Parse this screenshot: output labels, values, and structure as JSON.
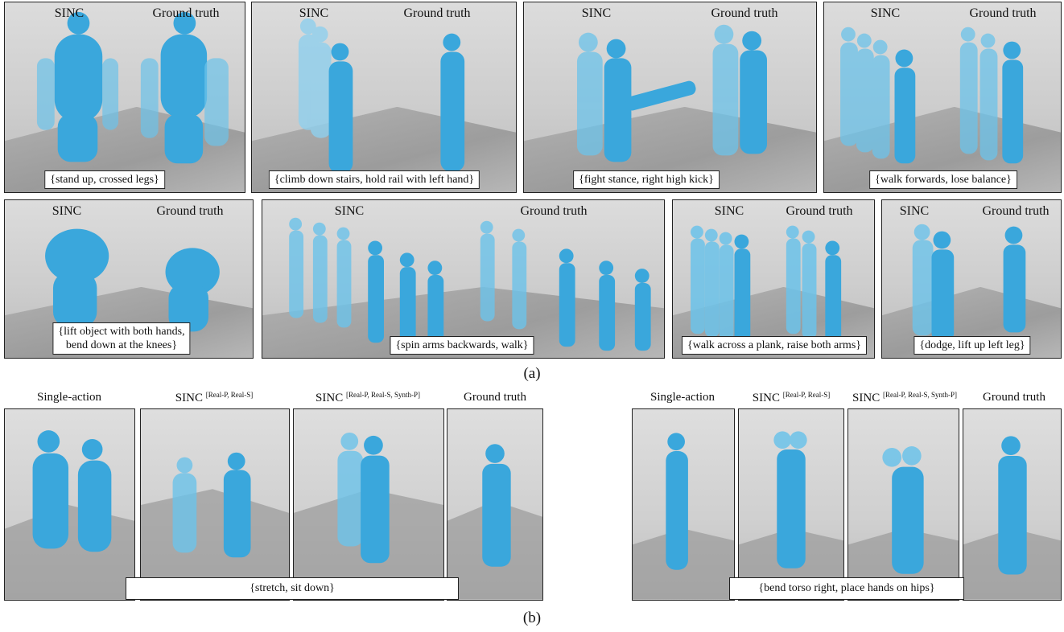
{
  "panels_a": [
    {
      "left": "SINC",
      "right": "Ground truth",
      "caption": "{stand up, crossed legs}"
    },
    {
      "left": "SINC",
      "right": "Ground truth",
      "caption": "{climb down stairs, hold rail with left hand}"
    },
    {
      "left": "SINC",
      "right": "Ground truth",
      "caption": "{fight stance, right high kick}"
    },
    {
      "left": "SINC",
      "right": "Ground truth",
      "caption": "{walk forwards, lose balance}"
    },
    {
      "left": "SINC",
      "right": "Ground truth",
      "caption1": "{lift object with both hands,",
      "caption2": "bend down at the knees}"
    },
    {
      "left": "SINC",
      "right": "Ground truth",
      "caption": "{spin arms backwards, walk}"
    },
    {
      "left": "SINC",
      "right": "Ground truth",
      "caption": "{walk across a plank, raise both arms}"
    },
    {
      "left": "SINC",
      "right": "Ground truth",
      "caption": "{dodge, lift up left leg}"
    }
  ],
  "label_a": "(a)",
  "group_b": [
    {
      "headers": {
        "single": "Single-action",
        "sinc1": "SINC",
        "sinc1_sup": "[Real-P, Real-S]",
        "sinc2": "SINC",
        "sinc2_sup": "[Real-P, Real-S, Synth-P]",
        "gt": "Ground truth"
      },
      "caption": "{stretch, sit down}"
    },
    {
      "headers": {
        "single": "Single-action",
        "sinc1": "SINC",
        "sinc1_sup": "[Real-P, Real-S]",
        "sinc2": "SINC",
        "sinc2_sup": "[Real-P, Real-S, Synth-P]",
        "gt": "Ground truth"
      },
      "caption": "{bend torso right, place hands on hips}"
    }
  ],
  "label_b": "(b)",
  "colors": {
    "body": "#4fb6e3",
    "body_dark": "#2c95cc",
    "body_light": "#8fd0ee"
  }
}
